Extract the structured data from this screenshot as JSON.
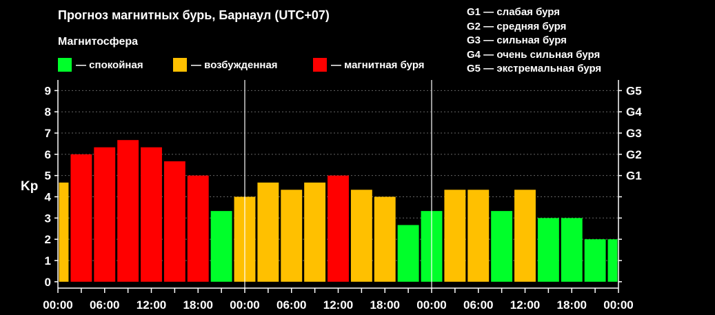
{
  "title": "Прогноз магнитных бурь, Барнаул (UTC+07)",
  "subtitle": "Магнитосфера",
  "legend": [
    {
      "color": "#00ff2a",
      "label": "— спокойная"
    },
    {
      "color": "#ffc000",
      "label": "— возбужденная"
    },
    {
      "color": "#ff0000",
      "label": "— магнитная буря"
    }
  ],
  "g_legend": [
    "G1 — слабая буря",
    "G2 — средняя буря",
    "G3 — сильная буря",
    "G4 — очень сильная буря",
    "G5 — экстремальная буря"
  ],
  "chart_data": {
    "type": "bar",
    "title": "Прогноз магнитных бурь, Барнаул (UTC+07)",
    "ylabel": "Kp",
    "ylim": [
      -0.3,
      9.5
    ],
    "yticks": [
      0,
      1,
      2,
      3,
      4,
      5,
      6,
      7,
      8,
      9
    ],
    "right_ticks": [
      {
        "value": 5,
        "label": "G1"
      },
      {
        "value": 6,
        "label": "G2"
      },
      {
        "value": 7,
        "label": "G3"
      },
      {
        "value": 8,
        "label": "G4"
      },
      {
        "value": 9,
        "label": "G5"
      }
    ],
    "x_unit_hours": 3,
    "x_range_hours": [
      0,
      72
    ],
    "xtick_labels": [
      "00:00",
      "06:00",
      "12:00",
      "18:00",
      "00:00",
      "06:00",
      "12:00",
      "18:00",
      "00:00",
      "06:00",
      "12:00",
      "18:00",
      "00:00"
    ],
    "day_separators_hours": [
      24,
      48
    ],
    "grid": "dotted horizontal",
    "color_map": {
      "quiet": "#00ff2a",
      "active": "#ffc000",
      "storm": "#ff0000"
    },
    "bars": [
      {
        "hour": 0,
        "value": 4.67,
        "status": "active",
        "partial": true
      },
      {
        "hour": 3,
        "value": 6.0,
        "status": "storm"
      },
      {
        "hour": 6,
        "value": 6.33,
        "status": "storm"
      },
      {
        "hour": 9,
        "value": 6.67,
        "status": "storm"
      },
      {
        "hour": 12,
        "value": 6.33,
        "status": "storm"
      },
      {
        "hour": 15,
        "value": 5.67,
        "status": "storm"
      },
      {
        "hour": 18,
        "value": 5.0,
        "status": "storm"
      },
      {
        "hour": 21,
        "value": 3.33,
        "status": "quiet"
      },
      {
        "hour": 24,
        "value": 4.0,
        "status": "active"
      },
      {
        "hour": 27,
        "value": 4.67,
        "status": "active"
      },
      {
        "hour": 30,
        "value": 4.33,
        "status": "active"
      },
      {
        "hour": 33,
        "value": 4.67,
        "status": "active"
      },
      {
        "hour": 36,
        "value": 5.0,
        "status": "storm"
      },
      {
        "hour": 39,
        "value": 4.33,
        "status": "active"
      },
      {
        "hour": 42,
        "value": 4.0,
        "status": "active"
      },
      {
        "hour": 45,
        "value": 2.67,
        "status": "quiet"
      },
      {
        "hour": 48,
        "value": 3.33,
        "status": "quiet"
      },
      {
        "hour": 51,
        "value": 4.33,
        "status": "active"
      },
      {
        "hour": 54,
        "value": 4.33,
        "status": "active"
      },
      {
        "hour": 57,
        "value": 3.33,
        "status": "quiet"
      },
      {
        "hour": 60,
        "value": 4.33,
        "status": "active"
      },
      {
        "hour": 63,
        "value": 3.0,
        "status": "quiet"
      },
      {
        "hour": 66,
        "value": 3.0,
        "status": "quiet"
      },
      {
        "hour": 69,
        "value": 2.0,
        "status": "quiet"
      },
      {
        "hour": 72,
        "value": 2.0,
        "status": "quiet"
      }
    ]
  }
}
